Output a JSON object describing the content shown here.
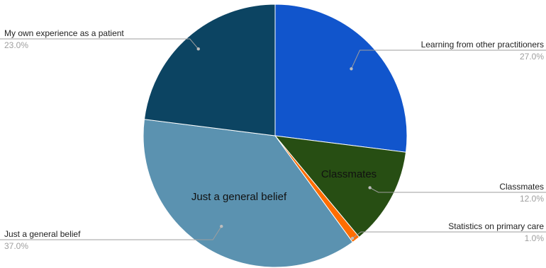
{
  "chart_data": {
    "type": "pie",
    "title": "",
    "slices": [
      {
        "label": "Learning from other practitioners",
        "value": 27.0,
        "pct_text": "27.0%",
        "color": "#1155cc",
        "inside_label": ""
      },
      {
        "label": "Classmates",
        "value": 12.0,
        "pct_text": "12.0%",
        "color": "#274e13",
        "inside_label": "Classmates"
      },
      {
        "label": "Statistics on primary care",
        "value": 1.0,
        "pct_text": "1.0%",
        "color": "#ff6d01",
        "inside_label": ""
      },
      {
        "label": "Just a general belief",
        "value": 37.0,
        "pct_text": "37.0%",
        "color": "#5b92b0",
        "inside_label": "Just a general belief"
      },
      {
        "label": "My own experience as a patient",
        "value": 23.0,
        "pct_text": "23.0%",
        "color": "#0c4462",
        "inside_label": ""
      }
    ],
    "start_angle": "12 o'clock",
    "direction": "clockwise",
    "legend": "none (callout labels)",
    "label_color": "#222222",
    "percent_color": "#9e9e9e",
    "leader_line_color": "#9e9e9e"
  }
}
